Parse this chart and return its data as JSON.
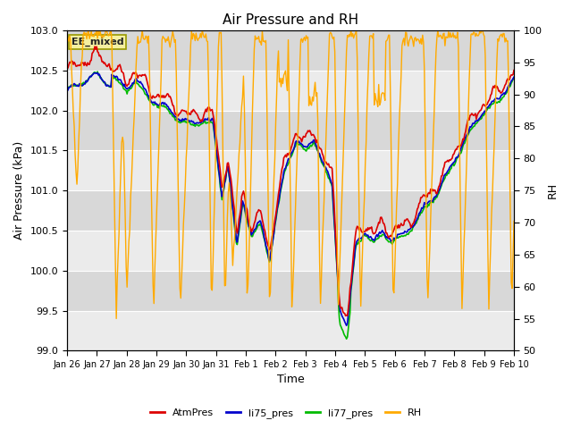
{
  "title": "Air Pressure and RH",
  "xlabel": "Time",
  "ylabel_left": "Air Pressure (kPa)",
  "ylabel_right": "RH",
  "ylim_left": [
    99.0,
    103.0
  ],
  "ylim_right": [
    50,
    100
  ],
  "yticks_left": [
    99.0,
    99.5,
    100.0,
    100.5,
    101.0,
    101.5,
    102.0,
    102.5,
    103.0
  ],
  "yticks_right": [
    50,
    55,
    60,
    65,
    70,
    75,
    80,
    85,
    90,
    95,
    100
  ],
  "xtick_labels": [
    "Jan 26",
    "Jan 27",
    "Jan 28",
    "Jan 29",
    "Jan 30",
    "Jan 31",
    "Feb 1",
    "Feb 2",
    "Feb 3",
    "Feb 4",
    "Feb 5",
    "Feb 6",
    "Feb 7",
    "Feb 8",
    "Feb 9",
    "Feb 10"
  ],
  "annotation_text": "EE_mixed",
  "annotation_box_facecolor": "#f5f0a0",
  "annotation_box_edgecolor": "#999900",
  "color_atm": "#dd0000",
  "color_li75": "#0000cc",
  "color_li77": "#00bb00",
  "color_rh": "#ffaa00",
  "legend_labels": [
    "AtmPres",
    "li75_pres",
    "li77_pres",
    "RH"
  ],
  "plot_bg_color": "#ebebeb",
  "grid_color": "#ffffff",
  "n_points": 500
}
